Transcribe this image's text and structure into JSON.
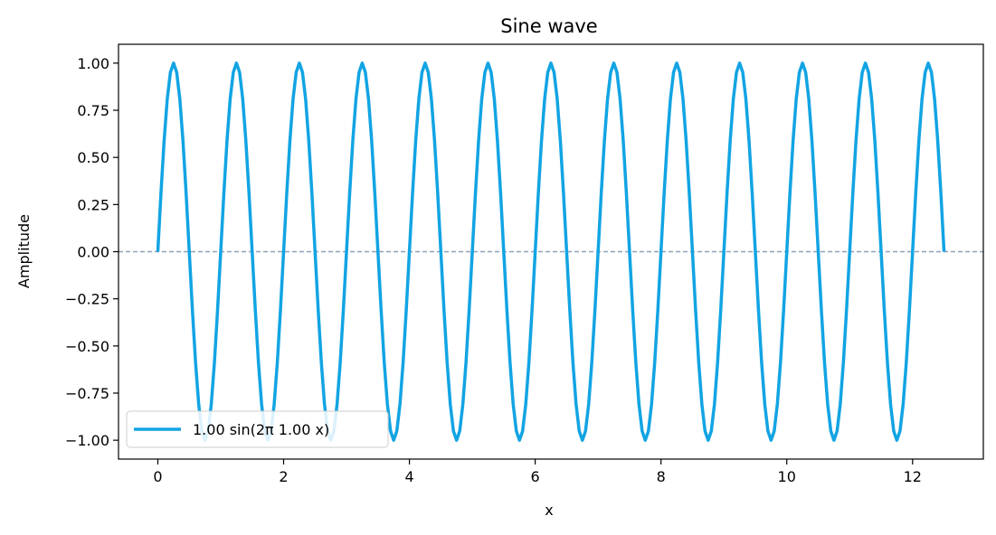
{
  "chart_data": {
    "type": "line",
    "title": "Sine wave",
    "xlabel": "x",
    "ylabel": "Amplitude",
    "xlim": [
      -0.625,
      13.125
    ],
    "ylim": [
      -1.1,
      1.1
    ],
    "x_ticks": [
      0,
      2,
      4,
      6,
      8,
      10,
      12
    ],
    "x_tick_labels": [
      "0",
      "2",
      "4",
      "6",
      "8",
      "10",
      "12"
    ],
    "y_ticks": [
      1.0,
      0.75,
      0.5,
      0.25,
      0.0,
      -0.25,
      -0.5,
      -0.75,
      -1.0
    ],
    "y_tick_labels": [
      "1.00",
      "0.75",
      "0.50",
      "0.25",
      "0.00",
      "−0.25",
      "−0.50",
      "−0.75",
      "−1.00"
    ],
    "grid": false,
    "legend_position": "lower-left",
    "series": [
      {
        "name": "1.00 sin(2π 1.00 x)",
        "amplitude": 1.0,
        "frequency": 1.0,
        "x_range": [
          0,
          12.5
        ],
        "color": "#12a4e3"
      }
    ],
    "reference_line": {
      "y": 0.0,
      "style": "dashed",
      "color": "#8ea2bb"
    }
  }
}
